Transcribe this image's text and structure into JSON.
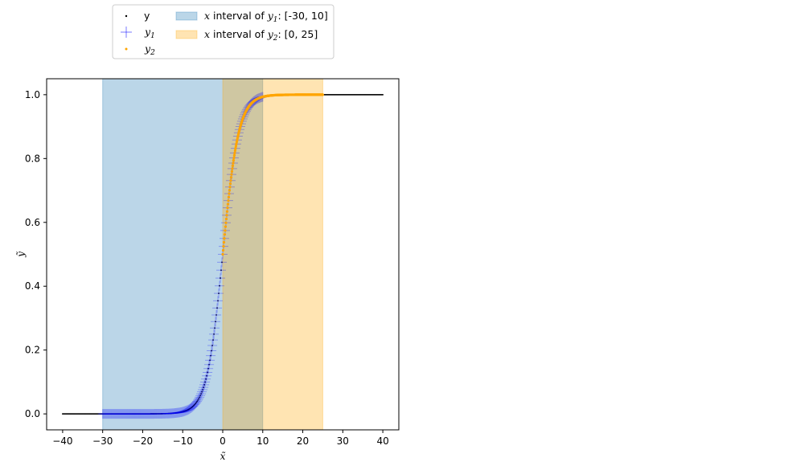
{
  "chart_data": {
    "type": "scatter",
    "title": "",
    "xlabel": "x̃",
    "ylabel": "ỹ",
    "xlim": [
      -44,
      44
    ],
    "ylim": [
      -0.05,
      1.05
    ],
    "xticks": [
      -40,
      -30,
      -20,
      -10,
      0,
      10,
      20,
      30,
      40
    ],
    "xtick_labels": [
      "−40",
      "−30",
      "−20",
      "−10",
      "0",
      "10",
      "20",
      "30",
      "40"
    ],
    "yticks": [
      0.0,
      0.2,
      0.4,
      0.6,
      0.8,
      1.0
    ],
    "ytick_labels": [
      "0.0",
      "0.2",
      "0.4",
      "0.6",
      "0.8",
      "1.0"
    ],
    "grid": false,
    "legend_position": "upper-left, outside above axes, 2 columns",
    "curve": "sigmoid y = 1/(1+exp(-0.5x))",
    "series": [
      {
        "name": "y",
        "marker": "point",
        "color": "#000000",
        "x_range": [
          -40,
          40
        ]
      },
      {
        "name": "y1",
        "marker": "plus",
        "color": "#0000ff",
        "x_range": [
          -30,
          10
        ]
      },
      {
        "name": "y2",
        "marker": "point",
        "color": "#ffa500",
        "x_range": [
          0,
          25
        ]
      }
    ],
    "spans": [
      {
        "name": "x interval of y1: [-30, 10]",
        "x_range": [
          -30,
          10
        ],
        "color": "#1f77b4",
        "alpha": 0.3
      },
      {
        "name": "x interval of y2: [0, 25]",
        "x_range": [
          0,
          25
        ],
        "color": "#ffa500",
        "alpha": 0.3
      }
    ],
    "legend": {
      "y": "y",
      "y1_base": "y",
      "y1_sub": "1",
      "y2_base": "y",
      "y2_sub": "2",
      "span1_x": "x",
      "span1_mid": " interval of ",
      "span1_y": "y",
      "span1_sub": "1",
      "span1_tail": ": [-30, 10]",
      "span2_x": "x",
      "span2_mid": " interval of ",
      "span2_y": "y",
      "span2_sub": "2",
      "span2_tail": ": [0, 25]"
    }
  }
}
